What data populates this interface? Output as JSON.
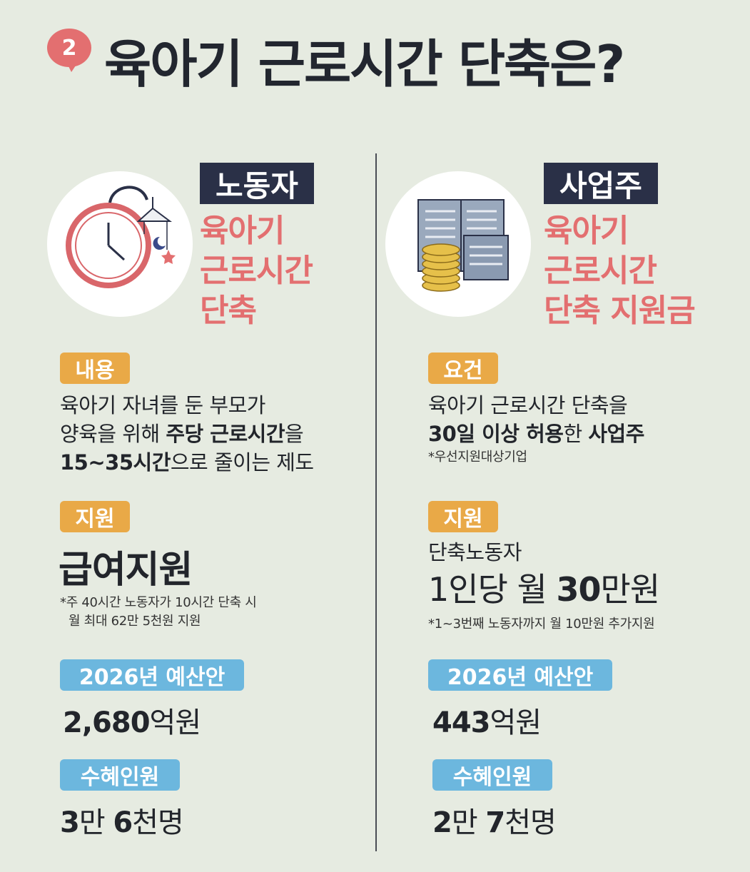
{
  "header": {
    "number": "2",
    "title": "육아기 근로시간 단축은?"
  },
  "left": {
    "role": "노동자",
    "headline": [
      "육아기",
      "근로시간",
      "단축"
    ],
    "content_tag": "내용",
    "content_line1": "육아기 자녀를 둔 부모가",
    "content_line2_pre": "양육을 위해 ",
    "content_line2_bold": "주당 근로시간",
    "content_line2_post": "을",
    "content_line3_bold": "15~35시간",
    "content_line3_post": "으로 줄이는 제도",
    "support_tag": "지원",
    "support_value": "급여지원",
    "support_note1": "*주 40시간 노동자가 10시간 단축 시",
    "support_note2": "월 최대 62만 5천원 지원",
    "budget_tag": "2026년 예산안",
    "budget_value": "2,680",
    "budget_unit": "억원",
    "beneficiary_tag": "수혜인원",
    "beneficiary_num1": "3",
    "beneficiary_unit1": "만 ",
    "beneficiary_num2": "6",
    "beneficiary_unit2": "천명"
  },
  "right": {
    "role": "사업주",
    "headline": [
      "육아기",
      "근로시간",
      "단축 지원금"
    ],
    "requirement_tag": "요건",
    "req_line1": "육아기 근로시간 단축을",
    "req_line2_bold1": "30일 이상 허용",
    "req_line2_mid": "한 ",
    "req_line2_bold2": "사업주",
    "req_note": "*우선지원대상기업",
    "support_tag": "지원",
    "support_line1": "단축노동자",
    "support_pre": "1인당 월 ",
    "support_bold": "30",
    "support_post": "만원",
    "support_note": "*1~3번째 노동자까지 월 10만원 추가지원",
    "budget_tag": "2026년 예산안",
    "budget_value": "443",
    "budget_unit": "억원",
    "beneficiary_tag": "수혜인원",
    "beneficiary_num1": "2",
    "beneficiary_unit1": "만 ",
    "beneficiary_num2": "7",
    "beneficiary_unit2": "천명"
  },
  "colors": {
    "accent_red": "#e36f70",
    "navy": "#2a3047",
    "orange": "#e9a947",
    "blue": "#6cb7de",
    "background": "#e6ebe1"
  },
  "icons": {
    "left": "clock-with-mobile-icon",
    "right": "documents-and-coins-icon"
  }
}
